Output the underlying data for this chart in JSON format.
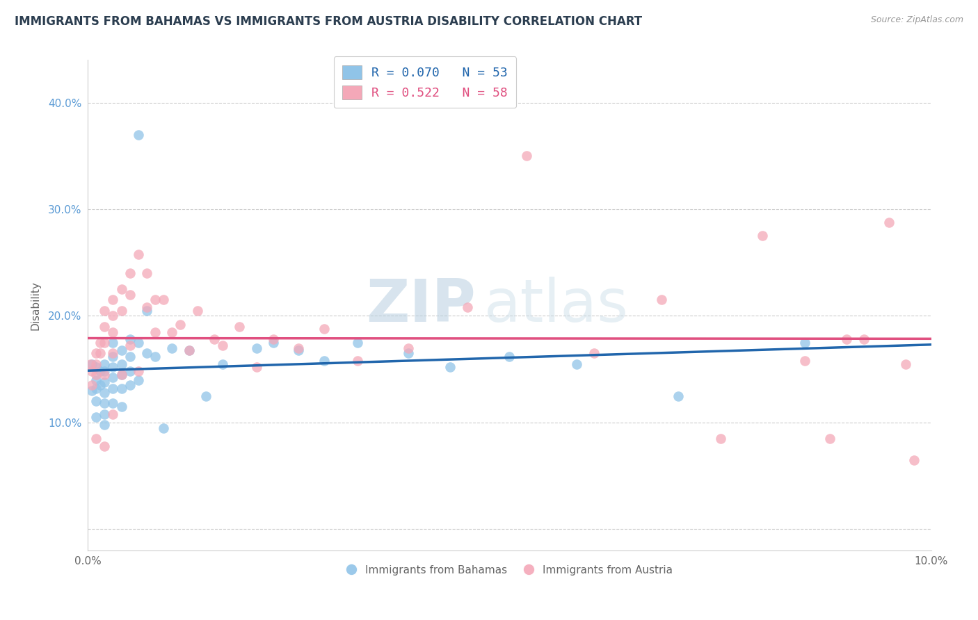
{
  "title": "IMMIGRANTS FROM BAHAMAS VS IMMIGRANTS FROM AUSTRIA DISABILITY CORRELATION CHART",
  "source": "Source: ZipAtlas.com",
  "ylabel": "Disability",
  "xlim": [
    0.0,
    0.1
  ],
  "ylim": [
    -0.02,
    0.44
  ],
  "yticks": [
    0.0,
    0.1,
    0.2,
    0.3,
    0.4
  ],
  "ytick_labels": [
    "",
    "10.0%",
    "20.0%",
    "30.0%",
    "40.0%"
  ],
  "legend_blue_label": "R = 0.070   N = 53",
  "legend_pink_label": "R = 0.522   N = 58",
  "blue_color": "#90c4e8",
  "pink_color": "#f4a8b8",
  "blue_line_color": "#2166ac",
  "pink_line_color": "#e05080",
  "watermark_zip": "ZIP",
  "watermark_atlas": "atlas",
  "bahamas_x": [
    0.0005,
    0.0005,
    0.001,
    0.001,
    0.001,
    0.001,
    0.001,
    0.0015,
    0.0015,
    0.002,
    0.002,
    0.002,
    0.002,
    0.002,
    0.002,
    0.002,
    0.003,
    0.003,
    0.003,
    0.003,
    0.003,
    0.003,
    0.004,
    0.004,
    0.004,
    0.004,
    0.004,
    0.005,
    0.005,
    0.005,
    0.005,
    0.006,
    0.006,
    0.006,
    0.007,
    0.007,
    0.008,
    0.009,
    0.01,
    0.012,
    0.014,
    0.016,
    0.02,
    0.022,
    0.025,
    0.028,
    0.032,
    0.038,
    0.043,
    0.05,
    0.058,
    0.07,
    0.085
  ],
  "bahamas_y": [
    0.155,
    0.13,
    0.152,
    0.14,
    0.132,
    0.12,
    0.105,
    0.148,
    0.135,
    0.155,
    0.148,
    0.138,
    0.128,
    0.118,
    0.108,
    0.098,
    0.175,
    0.162,
    0.152,
    0.142,
    0.132,
    0.118,
    0.168,
    0.155,
    0.145,
    0.132,
    0.115,
    0.178,
    0.162,
    0.148,
    0.135,
    0.37,
    0.175,
    0.14,
    0.205,
    0.165,
    0.162,
    0.095,
    0.17,
    0.168,
    0.125,
    0.155,
    0.17,
    0.175,
    0.168,
    0.158,
    0.175,
    0.165,
    0.152,
    0.162,
    0.155,
    0.125,
    0.175
  ],
  "austria_x": [
    0.0003,
    0.0005,
    0.0005,
    0.001,
    0.001,
    0.001,
    0.001,
    0.0015,
    0.0015,
    0.002,
    0.002,
    0.002,
    0.002,
    0.002,
    0.003,
    0.003,
    0.003,
    0.003,
    0.003,
    0.004,
    0.004,
    0.004,
    0.005,
    0.005,
    0.005,
    0.006,
    0.006,
    0.007,
    0.007,
    0.008,
    0.008,
    0.009,
    0.01,
    0.011,
    0.012,
    0.013,
    0.015,
    0.016,
    0.018,
    0.02,
    0.022,
    0.025,
    0.028,
    0.032,
    0.038,
    0.045,
    0.052,
    0.06,
    0.068,
    0.075,
    0.08,
    0.085,
    0.088,
    0.09,
    0.092,
    0.095,
    0.097,
    0.098
  ],
  "austria_y": [
    0.155,
    0.148,
    0.135,
    0.165,
    0.155,
    0.145,
    0.085,
    0.175,
    0.165,
    0.205,
    0.19,
    0.175,
    0.145,
    0.078,
    0.215,
    0.2,
    0.185,
    0.165,
    0.108,
    0.225,
    0.205,
    0.145,
    0.24,
    0.22,
    0.172,
    0.258,
    0.148,
    0.24,
    0.208,
    0.215,
    0.185,
    0.215,
    0.185,
    0.192,
    0.168,
    0.205,
    0.178,
    0.172,
    0.19,
    0.152,
    0.178,
    0.17,
    0.188,
    0.158,
    0.17,
    0.208,
    0.35,
    0.165,
    0.215,
    0.085,
    0.275,
    0.158,
    0.085,
    0.178,
    0.178,
    0.288,
    0.155,
    0.065
  ]
}
